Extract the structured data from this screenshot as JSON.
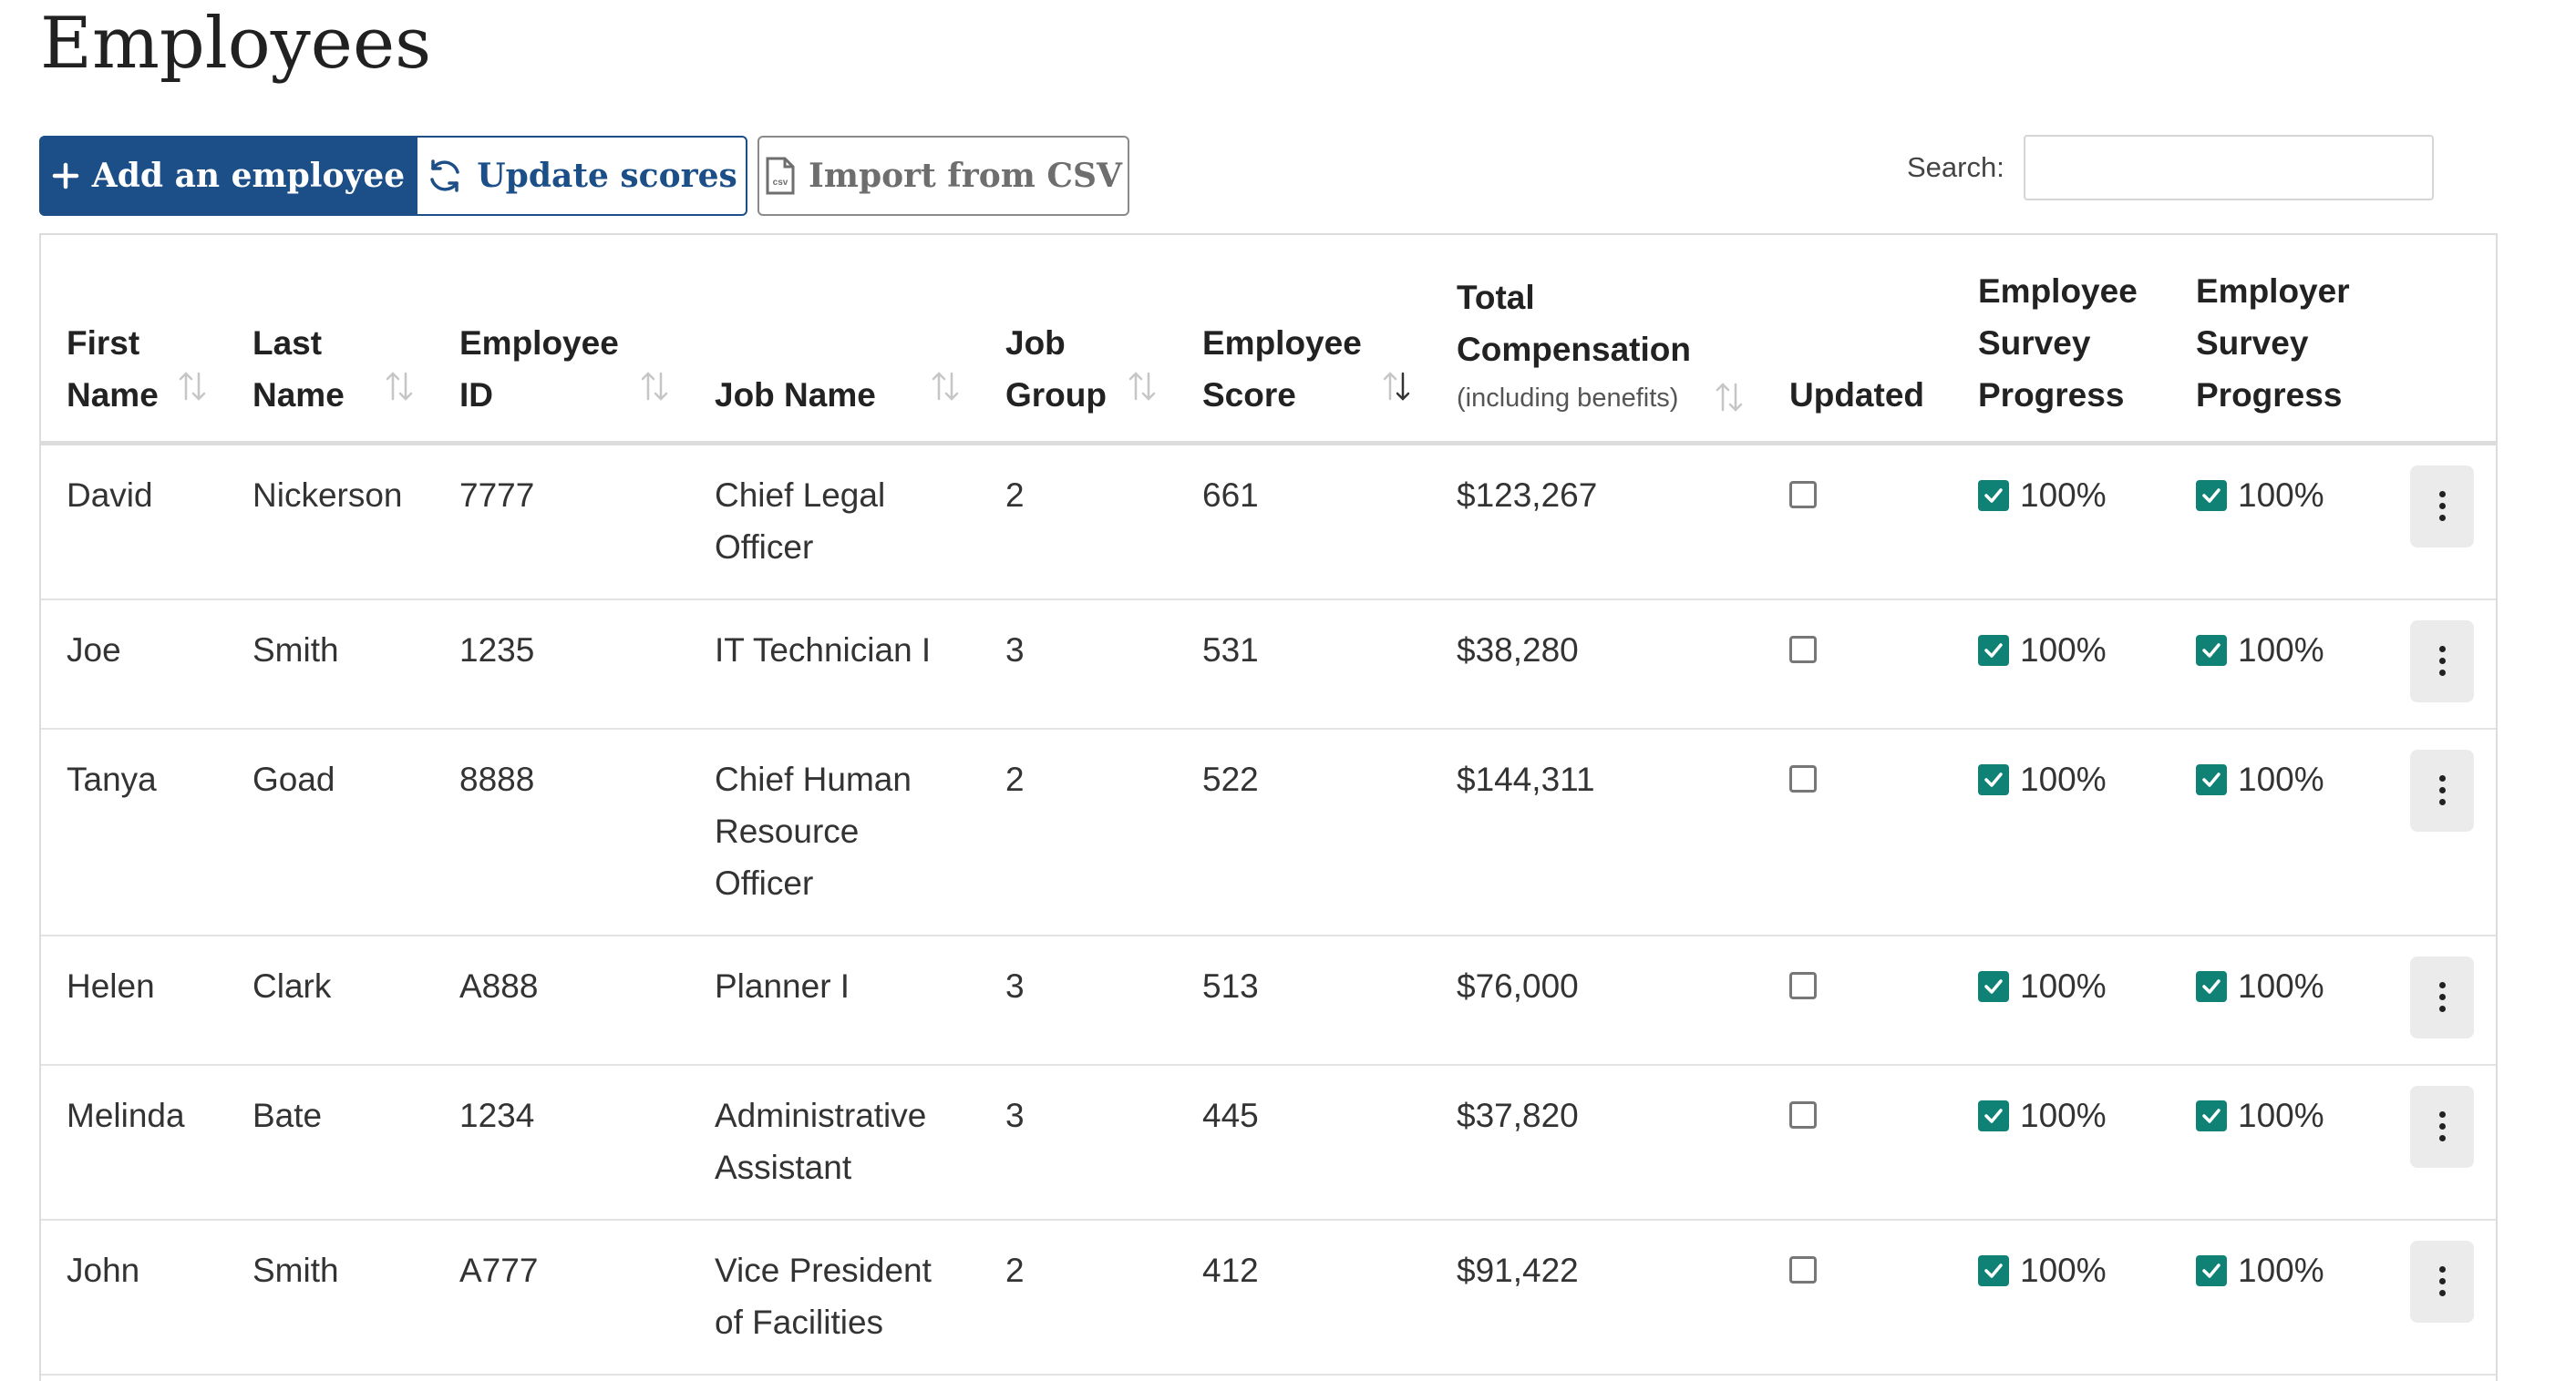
{
  "page": {
    "title": "Employees"
  },
  "toolbar": {
    "add_label": "Add an employee",
    "update_label": "Update scores",
    "import_label": "Import from CSV",
    "import_icon_text": "csv"
  },
  "search": {
    "label": "Search:",
    "value": "",
    "placeholder": ""
  },
  "table": {
    "headers": {
      "first_name": [
        "First",
        "Name"
      ],
      "last_name": [
        "Last",
        "Name"
      ],
      "employee_id": [
        "Employee",
        "ID"
      ],
      "job_name": [
        "Job Name"
      ],
      "job_group": [
        "Job",
        "Group"
      ],
      "employee_score": [
        "Employee",
        "Score"
      ],
      "total_comp": [
        "Total",
        "Compensation"
      ],
      "total_comp_sub": "(including benefits)",
      "updated": [
        "Updated"
      ],
      "employee_survey": [
        "Employee",
        "Survey",
        "Progress"
      ],
      "employer_survey": [
        "Employer",
        "Survey",
        "Progress"
      ]
    },
    "rows": [
      {
        "first": "David",
        "last": "Nickerson",
        "id": "7777",
        "job": [
          "Chief Legal",
          "Officer"
        ],
        "group": "2",
        "score": "661",
        "comp": "$123,267",
        "updated": false,
        "emp_survey": "100%",
        "empr_survey": "100%"
      },
      {
        "first": "Joe",
        "last": "Smith",
        "id": "1235",
        "job": [
          "IT Technician I"
        ],
        "group": "3",
        "score": "531",
        "comp": "$38,280",
        "updated": false,
        "emp_survey": "100%",
        "empr_survey": "100%"
      },
      {
        "first": "Tanya",
        "last": "Goad",
        "id": "8888",
        "job": [
          "Chief Human",
          "Resource",
          "Officer"
        ],
        "group": "2",
        "score": "522",
        "comp": "$144,311",
        "updated": false,
        "emp_survey": "100%",
        "empr_survey": "100%"
      },
      {
        "first": "Helen",
        "last": "Clark",
        "id": "A888",
        "job": [
          "Planner I"
        ],
        "group": "3",
        "score": "513",
        "comp": "$76,000",
        "updated": false,
        "emp_survey": "100%",
        "empr_survey": "100%"
      },
      {
        "first": "Melinda",
        "last": "Bate",
        "id": "1234",
        "job": [
          "Administrative",
          "Assistant"
        ],
        "group": "3",
        "score": "445",
        "comp": "$37,820",
        "updated": false,
        "emp_survey": "100%",
        "empr_survey": "100%"
      },
      {
        "first": "John",
        "last": "Smith",
        "id": "A777",
        "job": [
          "Vice President",
          "of Facilities"
        ],
        "group": "2",
        "score": "412",
        "comp": "$91,422",
        "updated": false,
        "emp_survey": "100%",
        "empr_survey": "100%"
      }
    ]
  },
  "colors": {
    "primary": "#1c4e87",
    "check": "#108275"
  },
  "icons": {
    "add": "plus-icon",
    "update": "refresh-icon",
    "import": "csv-file-icon",
    "sort": "sort-arrows-icon",
    "row_menu": "kebab-menu-icon",
    "checkbox": "checkbox-icon"
  }
}
